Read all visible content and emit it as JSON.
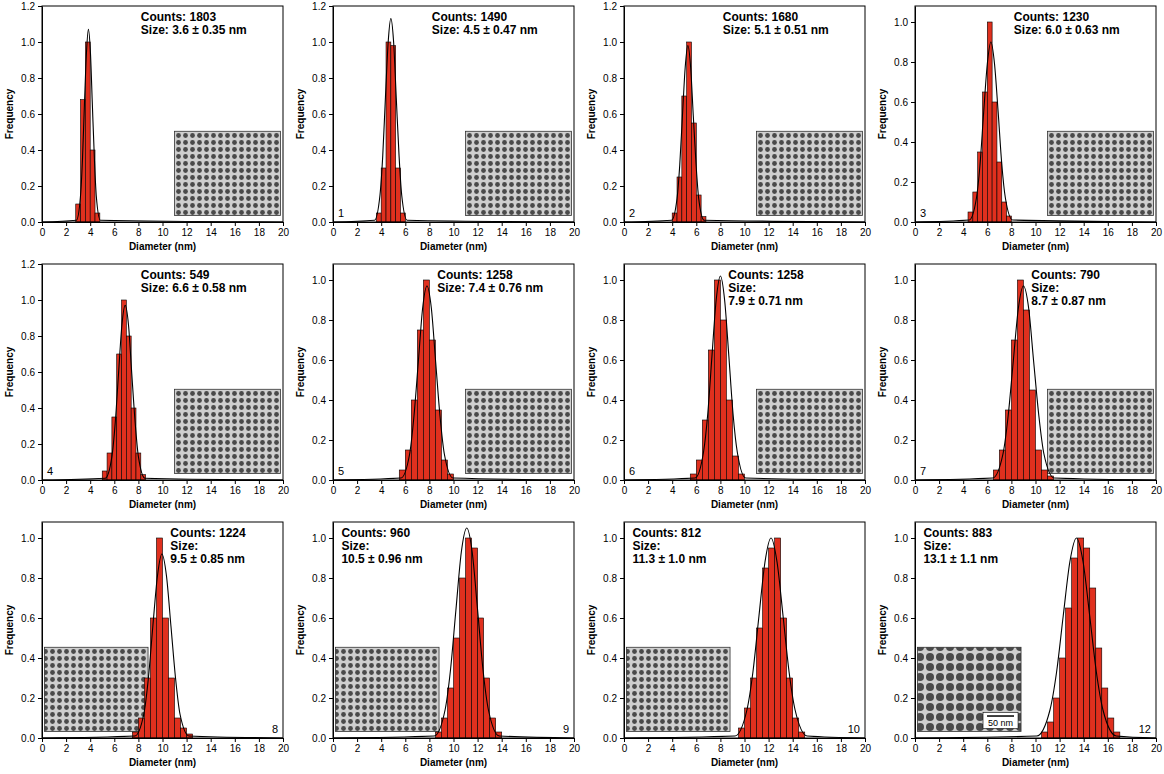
{
  "chart_data": [
    {
      "type": "histogram",
      "annotation": [
        "Counts: 1803",
        "Size: 3.6 ± 0.35 nm"
      ],
      "x_label": "Diameter (nm)",
      "y_label": "Frequency",
      "color": "#e0301e",
      "bins": [
        2.8,
        3.2,
        3.6,
        4.0,
        4.4,
        4.8
      ],
      "counts": [
        0.1,
        0.68,
        1.0,
        0.4,
        0.05
      ],
      "fit_line": {
        "color": "#000000",
        "line_style": "solid",
        "x": [
          0,
          2.86,
          3.19,
          3.36,
          3.52,
          3.69,
          3.85,
          4.02,
          4.18,
          4.35,
          4.51,
          4.84,
          20
        ],
        "values": [
          0,
          0.01,
          0.14,
          0.35,
          0.65,
          0.94,
          1.07,
          0.94,
          0.65,
          0.35,
          0.14,
          0.01,
          0
        ]
      },
      "xlim": [
        0,
        20
      ],
      "xticks": [
        0,
        2,
        4,
        6,
        8,
        10,
        12,
        14,
        16,
        18,
        20
      ],
      "ylim": [
        0,
        1.2
      ],
      "yticks": [
        {
          "value": 0,
          "label": "0.0"
        },
        0.2,
        0.4,
        0.6,
        0.8,
        {
          "value": 1,
          "label": "1.0"
        },
        1.2
      ]
    },
    {
      "type": "histogram",
      "panel_label": "1",
      "annotation": [
        "Counts: 1490",
        "Size: 4.5 ± 0.47 nm"
      ],
      "x_label": "Diameter (nm)",
      "y_label": "Frequency",
      "color": "#e0301e",
      "bins": [
        3.6,
        4.0,
        4.4,
        4.8,
        5.2,
        5.6,
        6.0
      ],
      "counts": [
        0.05,
        0.3,
        1.0,
        0.98,
        0.3,
        0.05
      ],
      "fit_line": {
        "color": "#000000",
        "line_style": "solid",
        "x": [
          0,
          3.45,
          3.9,
          4.13,
          4.35,
          4.58,
          4.8,
          5.03,
          5.25,
          5.48,
          5.7,
          6.15,
          20
        ],
        "values": [
          0,
          0.01,
          0.15,
          0.37,
          0.69,
          1.0,
          1.13,
          1.0,
          0.69,
          0.37,
          0.15,
          0.01,
          0
        ]
      },
      "xlim": [
        0,
        20
      ],
      "xticks": [
        0,
        2,
        4,
        6,
        8,
        10,
        12,
        14,
        16,
        18,
        20
      ],
      "ylim": [
        0,
        1.2
      ],
      "yticks": [
        {
          "value": 0,
          "label": "0.0"
        },
        0.2,
        0.4,
        0.6,
        0.8,
        {
          "value": 1,
          "label": "1.0"
        },
        1.2
      ]
    },
    {
      "type": "histogram",
      "panel_label": "2",
      "annotation": [
        "Counts: 1680",
        "Size: 5.1 ± 0.51 nm"
      ],
      "x_label": "Diameter (nm)",
      "y_label": "Frequency",
      "color": "#e0301e",
      "bins": [
        4.0,
        4.4,
        4.8,
        5.2,
        5.6,
        6.0,
        6.4,
        6.8
      ],
      "counts": [
        0.05,
        0.25,
        0.7,
        1.0,
        0.55,
        0.15,
        0.03
      ],
      "fit_line": {
        "color": "#000000",
        "line_style": "solid",
        "x": [
          0,
          3.95,
          4.4,
          4.63,
          4.85,
          5.08,
          5.3,
          5.53,
          5.75,
          5.98,
          6.2,
          6.65,
          20
        ],
        "values": [
          0,
          0.01,
          0.13,
          0.32,
          0.59,
          0.86,
          0.98,
          0.86,
          0.59,
          0.32,
          0.13,
          0.01,
          0
        ]
      },
      "xlim": [
        0,
        20
      ],
      "xticks": [
        0,
        2,
        4,
        6,
        8,
        10,
        12,
        14,
        16,
        18,
        20
      ],
      "ylim": [
        0,
        1.2
      ],
      "yticks": [
        {
          "value": 0,
          "label": "0.0"
        },
        0.2,
        0.4,
        0.6,
        0.8,
        {
          "value": 1,
          "label": "1.0"
        },
        1.2
      ]
    },
    {
      "type": "histogram",
      "panel_label": "3",
      "annotation": [
        "Counts: 1230",
        "Size: 6.0 ± 0.63 nm"
      ],
      "x_label": "Diameter (nm)",
      "y_label": "Frequency",
      "color": "#e0301e",
      "bins": [
        4.4,
        4.8,
        5.2,
        5.6,
        6.0,
        6.4,
        6.8,
        7.2,
        7.6,
        8.0
      ],
      "counts": [
        0.05,
        0.15,
        0.35,
        0.65,
        1.0,
        0.6,
        0.3,
        0.1,
        0.03
      ],
      "fit_line": {
        "color": "#000000",
        "line_style": "solid",
        "x": [
          0,
          4.5,
          5.1,
          5.4,
          5.7,
          6.0,
          6.3,
          6.6,
          6.9,
          7.2,
          7.5,
          8.1,
          20
        ],
        "values": [
          0,
          0.01,
          0.12,
          0.29,
          0.55,
          0.79,
          0.9,
          0.79,
          0.55,
          0.29,
          0.12,
          0.01,
          0
        ]
      },
      "xlim": [
        0,
        20
      ],
      "xticks": [
        0,
        2,
        4,
        6,
        8,
        10,
        12,
        14,
        16,
        18,
        20
      ],
      "ylim": [
        0,
        1.08
      ],
      "yticks": [
        {
          "value": 0,
          "label": "0.0"
        },
        0.2,
        0.4,
        0.6,
        0.8,
        {
          "value": 1,
          "label": "1.0"
        }
      ]
    },
    {
      "type": "histogram",
      "panel_label": "4",
      "annotation": [
        "Counts: 549",
        "Size: 6.6 ± 0.58 nm"
      ],
      "x_label": "Diameter (nm)",
      "y_label": "Frequency",
      "color": "#e0301e",
      "bins": [
        5.0,
        5.4,
        5.8,
        6.2,
        6.6,
        7.0,
        7.4,
        7.8,
        8.2,
        8.6
      ],
      "counts": [
        0.05,
        0.15,
        0.35,
        0.7,
        1.0,
        0.8,
        0.4,
        0.15,
        0.03
      ],
      "fit_line": {
        "color": "#000000",
        "line_style": "solid",
        "x": [
          0,
          5.25,
          5.8,
          6.08,
          6.35,
          6.63,
          6.9,
          7.18,
          7.45,
          7.73,
          8.0,
          8.55,
          20
        ],
        "values": [
          0,
          0.01,
          0.13,
          0.32,
          0.59,
          0.86,
          0.97,
          0.86,
          0.59,
          0.32,
          0.13,
          0.01,
          0
        ]
      },
      "xlim": [
        0,
        20
      ],
      "xticks": [
        0,
        2,
        4,
        6,
        8,
        10,
        12,
        14,
        16,
        18,
        20
      ],
      "ylim": [
        0,
        1.2
      ],
      "yticks": [
        {
          "value": 0,
          "label": "0.0"
        },
        0.2,
        0.4,
        0.6,
        0.8,
        {
          "value": 1,
          "label": "1.0"
        },
        1.2
      ]
    },
    {
      "type": "histogram",
      "panel_label": "5",
      "annotation": [
        "Counts: 1258",
        "Size: 7.4 ± 0.76 nm"
      ],
      "x_label": "Diameter (nm)",
      "y_label": "Frequency",
      "color": "#e0301e",
      "bins": [
        5.5,
        6.0,
        6.5,
        7.0,
        7.5,
        8.0,
        8.5,
        9.0,
        9.5,
        10.0
      ],
      "counts": [
        0.05,
        0.15,
        0.4,
        0.75,
        1.0,
        0.7,
        0.35,
        0.1,
        0.03
      ],
      "fit_line": {
        "color": "#000000",
        "line_style": "solid",
        "x": [
          0,
          5.64,
          6.36,
          6.72,
          7.08,
          7.44,
          7.8,
          8.16,
          8.52,
          8.88,
          9.24,
          9.96,
          20
        ],
        "values": [
          0,
          0.01,
          0.13,
          0.32,
          0.59,
          0.86,
          0.97,
          0.86,
          0.59,
          0.32,
          0.13,
          0.01,
          0
        ]
      },
      "xlim": [
        0,
        20
      ],
      "xticks": [
        0,
        2,
        4,
        6,
        8,
        10,
        12,
        14,
        16,
        18,
        20
      ],
      "ylim": [
        0,
        1.08
      ],
      "yticks": [
        {
          "value": 0,
          "label": "0.0"
        },
        0.2,
        0.4,
        0.6,
        0.8,
        {
          "value": 1,
          "label": "1.0"
        }
      ]
    },
    {
      "type": "histogram",
      "panel_label": "6",
      "annotation": [
        "Counts: 1258",
        "Size:",
        "7.9 ± 0.71 nm"
      ],
      "x_label": "Diameter (nm)",
      "y_label": "Frequency",
      "color": "#e0301e",
      "bins": [
        5.5,
        6.0,
        6.5,
        7.0,
        7.5,
        8.0,
        8.5,
        9.0,
        9.5,
        10.0
      ],
      "counts": [
        0.03,
        0.1,
        0.3,
        0.65,
        1.0,
        0.8,
        0.4,
        0.12,
        0.03
      ],
      "fit_line": {
        "color": "#000000",
        "line_style": "solid",
        "x": [
          0,
          5.9,
          6.6,
          6.95,
          7.3,
          7.65,
          8.0,
          8.35,
          8.7,
          9.05,
          9.4,
          10.1,
          20
        ],
        "values": [
          0,
          0.01,
          0.14,
          0.33,
          0.62,
          0.9,
          1.02,
          0.9,
          0.62,
          0.33,
          0.14,
          0.01,
          0
        ]
      },
      "xlim": [
        0,
        20
      ],
      "xticks": [
        0,
        2,
        4,
        6,
        8,
        10,
        12,
        14,
        16,
        18,
        20
      ],
      "ylim": [
        0,
        1.08
      ],
      "yticks": [
        {
          "value": 0,
          "label": "0.0"
        },
        0.2,
        0.4,
        0.6,
        0.8,
        {
          "value": 1,
          "label": "1.0"
        }
      ]
    },
    {
      "type": "histogram",
      "panel_label": "7",
      "annotation": [
        "Counts: 790",
        "Size:",
        "8.7 ± 0.87 nm"
      ],
      "x_label": "Diameter (nm)",
      "y_label": "Frequency",
      "color": "#e0301e",
      "bins": [
        6.5,
        7.0,
        7.5,
        8.0,
        8.5,
        9.0,
        9.5,
        10.0,
        10.5,
        11.0,
        11.5
      ],
      "counts": [
        0.05,
        0.15,
        0.35,
        0.7,
        1.0,
        0.85,
        0.45,
        0.15,
        0.05,
        0.02
      ],
      "fit_line": {
        "color": "#000000",
        "line_style": "solid",
        "x": [
          0,
          6.45,
          7.3,
          7.73,
          8.15,
          8.58,
          9.0,
          9.43,
          9.85,
          10.28,
          10.7,
          11.55,
          20
        ],
        "values": [
          0,
          0.01,
          0.13,
          0.32,
          0.59,
          0.86,
          0.97,
          0.86,
          0.59,
          0.32,
          0.13,
          0.01,
          0
        ]
      },
      "xlim": [
        0,
        20
      ],
      "xticks": [
        0,
        2,
        4,
        6,
        8,
        10,
        12,
        14,
        16,
        18,
        20
      ],
      "ylim": [
        0,
        1.08
      ],
      "yticks": [
        {
          "value": 0,
          "label": "0.0"
        },
        0.2,
        0.4,
        0.6,
        0.8,
        {
          "value": 1,
          "label": "1.0"
        }
      ]
    },
    {
      "type": "histogram",
      "panel_label": "8",
      "annotation": [
        "Counts: 1224",
        "Size:",
        "9.5 ± 0.85 nm"
      ],
      "x_label": "Diameter (nm)",
      "y_label": "Frequency",
      "color": "#e0301e",
      "bins": [
        7.5,
        8.0,
        8.5,
        9.0,
        9.5,
        10.0,
        10.5,
        11.0,
        11.5,
        12.0,
        12.5
      ],
      "counts": [
        0.03,
        0.1,
        0.3,
        0.6,
        1.0,
        0.6,
        0.3,
        0.1,
        0.05,
        0.02
      ],
      "fit_line": {
        "color": "#000000",
        "line_style": "solid",
        "x": [
          0,
          7.7,
          8.45,
          8.83,
          9.2,
          9.58,
          9.95,
          10.33,
          10.7,
          11.08,
          11.45,
          12.2,
          20
        ],
        "values": [
          0,
          0.01,
          0.12,
          0.3,
          0.56,
          0.81,
          0.92,
          0.81,
          0.56,
          0.3,
          0.12,
          0.01,
          0
        ]
      },
      "xlim": [
        0,
        20
      ],
      "xticks": [
        0,
        2,
        4,
        6,
        8,
        10,
        12,
        14,
        16,
        18,
        20
      ],
      "ylim": [
        0,
        1.08
      ],
      "yticks": [
        {
          "value": 0,
          "label": "0.0"
        },
        0.2,
        0.4,
        0.6,
        0.8,
        {
          "value": 1,
          "label": "1.0"
        }
      ]
    },
    {
      "type": "histogram",
      "panel_label": "9",
      "annotation": [
        "Counts: 960",
        "Size:",
        "10.5 ± 0.96 nm"
      ],
      "x_label": "Diameter (nm)",
      "y_label": "Frequency",
      "color": "#e0301e",
      "bins": [
        8.5,
        9.0,
        9.5,
        10.0,
        10.5,
        11.0,
        11.5,
        12.0,
        12.5,
        13.0,
        13.5,
        14.0
      ],
      "counts": [
        0.03,
        0.1,
        0.25,
        0.5,
        0.8,
        1.0,
        0.95,
        0.6,
        0.3,
        0.1,
        0.03
      ],
      "fit_line": {
        "color": "#000000",
        "line_style": "solid",
        "x": [
          0,
          8.4,
          9.3,
          9.75,
          10.2,
          10.65,
          11.1,
          11.55,
          12.0,
          12.45,
          12.9,
          13.8,
          20
        ],
        "values": [
          0,
          0.01,
          0.14,
          0.34,
          0.64,
          0.93,
          1.05,
          0.93,
          0.64,
          0.34,
          0.14,
          0.01,
          0
        ]
      },
      "xlim": [
        0,
        20
      ],
      "xticks": [
        0,
        2,
        4,
        6,
        8,
        10,
        12,
        14,
        16,
        18,
        20
      ],
      "ylim": [
        0,
        1.08
      ],
      "yticks": [
        {
          "value": 0,
          "label": "0.0"
        },
        0.2,
        0.4,
        0.6,
        0.8,
        {
          "value": 1,
          "label": "1.0"
        }
      ]
    },
    {
      "type": "histogram",
      "panel_label": "10",
      "annotation": [
        "Counts: 812",
        "Size:",
        "11.3 ± 1.0 nm"
      ],
      "x_label": "Diameter (nm)",
      "y_label": "Frequency",
      "color": "#e0301e",
      "bins": [
        9.5,
        10.0,
        10.5,
        11.0,
        11.5,
        12.0,
        12.5,
        13.0,
        13.5,
        14.0,
        14.5,
        15.0
      ],
      "counts": [
        0.05,
        0.15,
        0.3,
        0.55,
        0.85,
        0.95,
        1.0,
        0.6,
        0.3,
        0.1,
        0.03
      ],
      "fit_line": {
        "color": "#000000",
        "line_style": "solid",
        "x": [
          0,
          9.2,
          10.2,
          10.7,
          11.2,
          11.7,
          12.2,
          12.7,
          13.2,
          13.7,
          14.2,
          15.2,
          20
        ],
        "values": [
          0,
          0.01,
          0.14,
          0.33,
          0.61,
          0.88,
          1.0,
          0.88,
          0.61,
          0.33,
          0.14,
          0.01,
          0
        ]
      },
      "xlim": [
        0,
        20
      ],
      "xticks": [
        0,
        2,
        4,
        6,
        8,
        10,
        12,
        14,
        16,
        18,
        20
      ],
      "ylim": [
        0,
        1.08
      ],
      "yticks": [
        {
          "value": 0,
          "label": "0.0"
        },
        0.2,
        0.4,
        0.6,
        0.8,
        {
          "value": 1,
          "label": "1.0"
        }
      ]
    },
    {
      "type": "histogram",
      "panel_label": "12",
      "annotation": [
        "Counts: 883",
        "Size:",
        "13.1 ± 1.1 nm"
      ],
      "inset_label": "50 nm",
      "x_label": "Diameter (nm)",
      "y_label": "Frequency",
      "color": "#e0301e",
      "bins": [
        10.5,
        11.0,
        11.5,
        12.0,
        12.5,
        13.0,
        13.5,
        14.0,
        14.5,
        15.0,
        15.5,
        16.0,
        16.5,
        17.0
      ],
      "counts": [
        0.03,
        0.08,
        0.2,
        0.4,
        0.65,
        0.9,
        1.0,
        0.95,
        0.75,
        0.45,
        0.25,
        0.1,
        0.03
      ],
      "fit_line": {
        "color": "#000000",
        "line_style": "solid",
        "x": [
          0,
          10.1,
          11.2,
          11.75,
          12.3,
          12.85,
          13.4,
          13.95,
          14.5,
          15.05,
          15.6,
          16.7,
          20
        ],
        "values": [
          0,
          0.01,
          0.14,
          0.33,
          0.61,
          0.88,
          1.0,
          0.88,
          0.61,
          0.33,
          0.14,
          0.01,
          0
        ]
      },
      "xlim": [
        0,
        20
      ],
      "xticks": [
        0,
        2,
        4,
        6,
        8,
        10,
        12,
        14,
        16,
        18,
        20
      ],
      "ylim": [
        0,
        1.08
      ],
      "yticks": [
        {
          "value": 0,
          "label": "0.0"
        },
        0.2,
        0.4,
        0.6,
        0.8,
        {
          "value": 1,
          "label": "1.0"
        }
      ]
    }
  ]
}
